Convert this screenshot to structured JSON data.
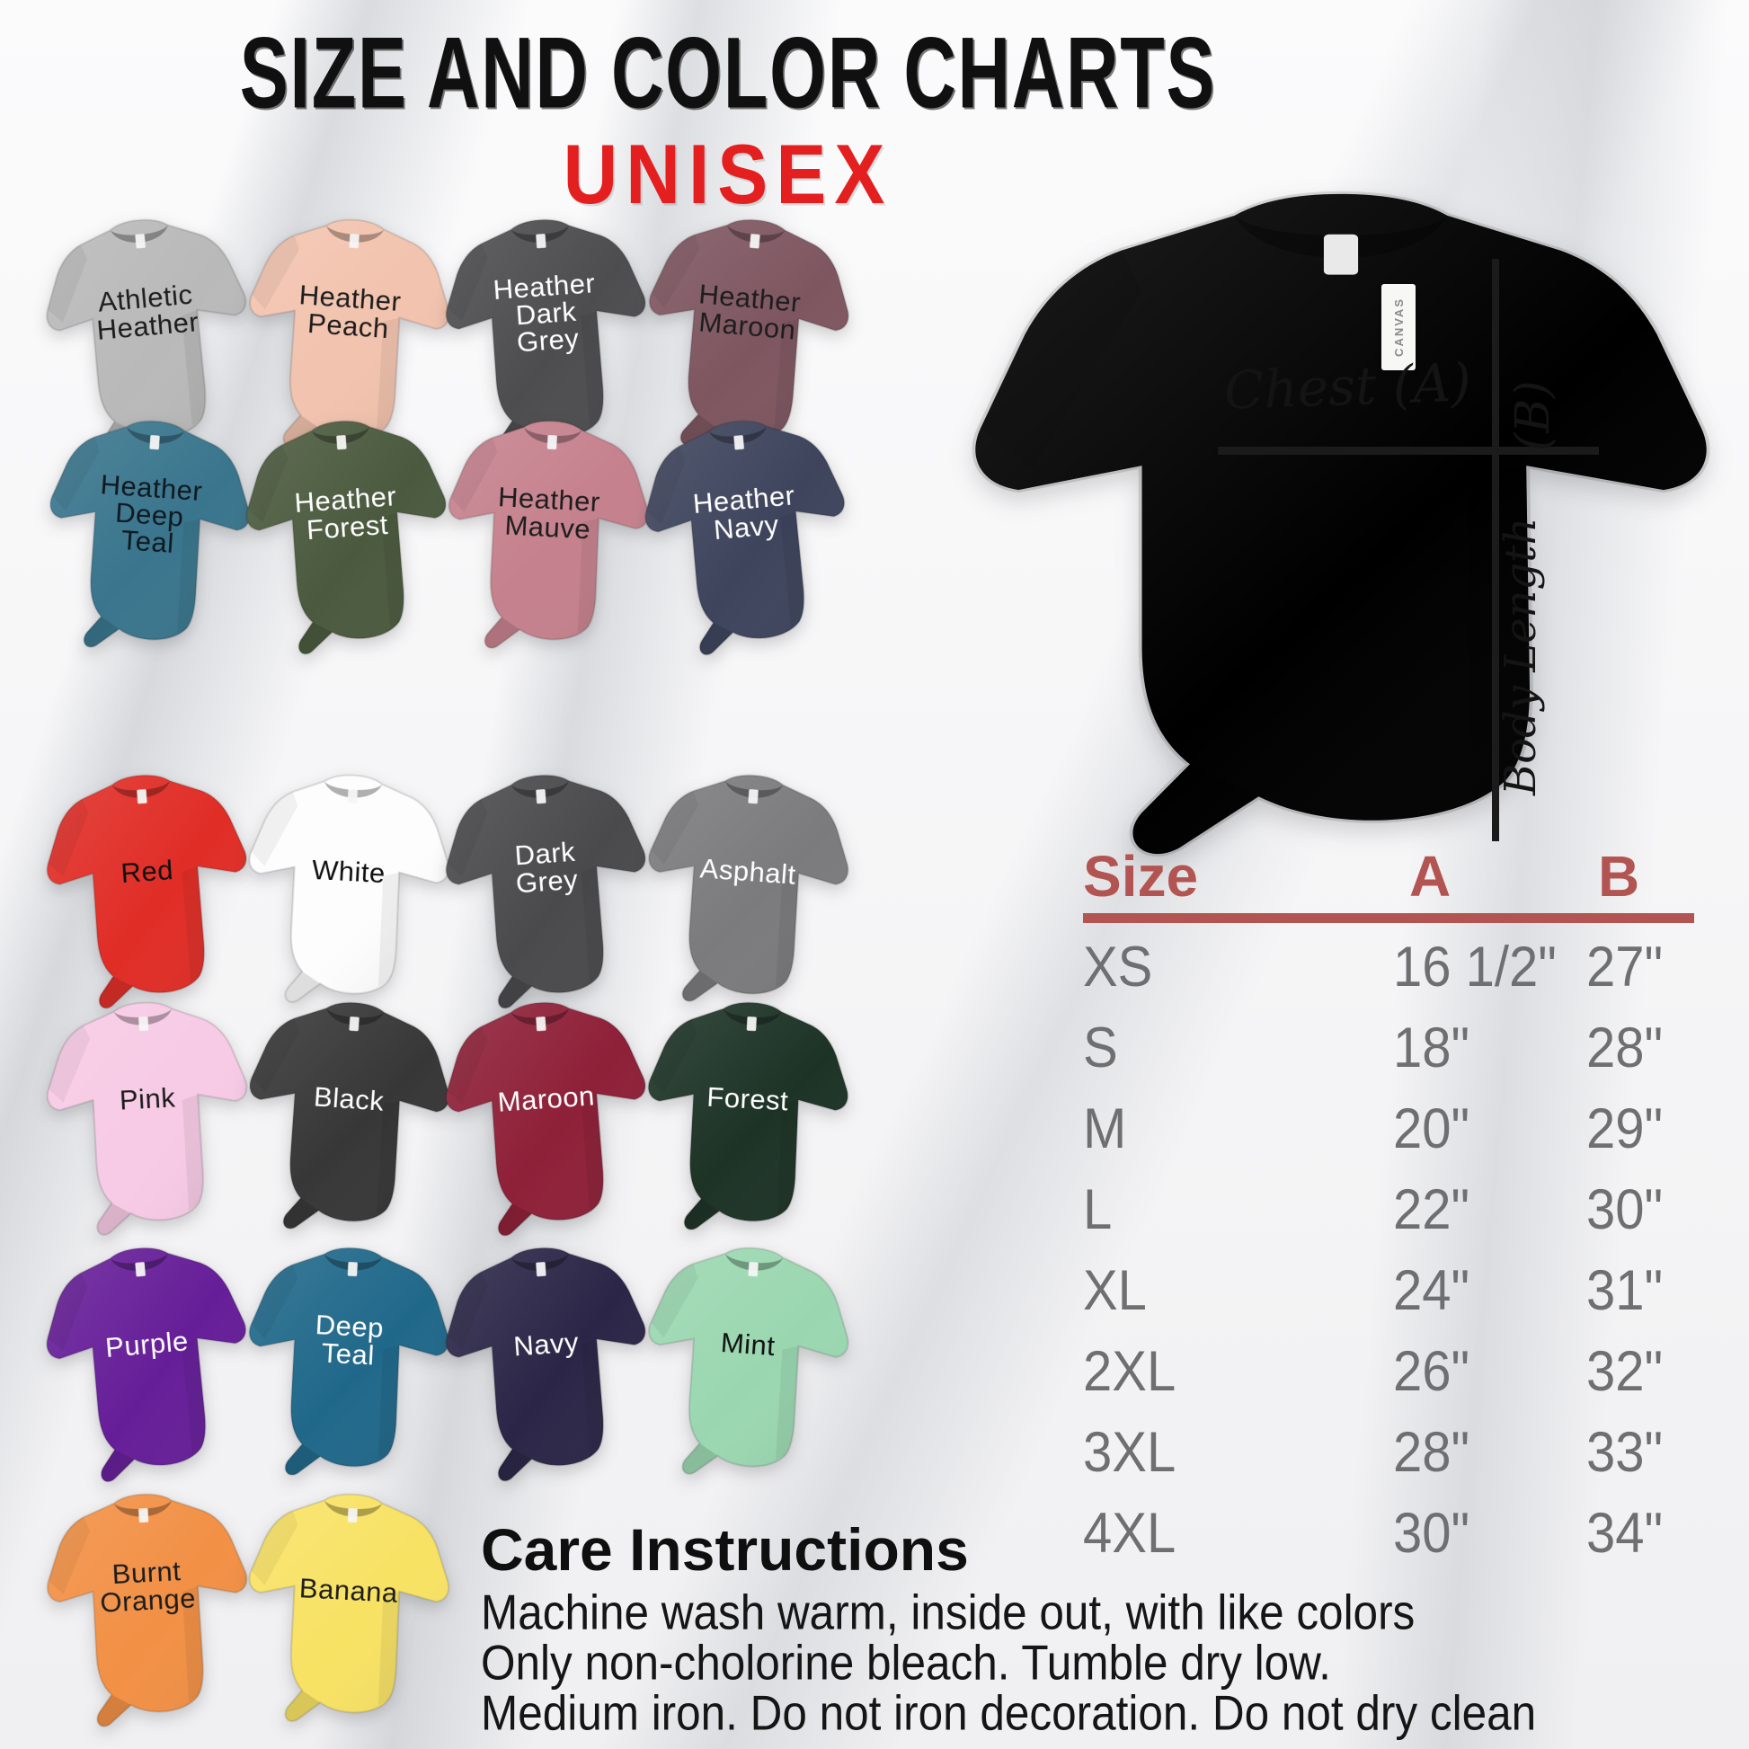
{
  "title": "SIZE AND COLOR CHARTS",
  "subtitle": "UNISEX",
  "accent": {
    "subtitle_red": "#e41f20",
    "table_header": "#b25552",
    "table_rule": "#b25552",
    "table_text": "#6f6f71",
    "measure_line": "#1b1b1b"
  },
  "shirts": [
    {
      "label": "Athletic Heather",
      "color": "#b9b9b9",
      "text": "#1d1d1d"
    },
    {
      "label": "Heather Peach",
      "color": "#f2c3ae",
      "text": "#1d1d1d"
    },
    {
      "label": "Heather Dark Grey",
      "color": "#4d4d4f",
      "text": "#ffffff"
    },
    {
      "label": "Heather Maroon",
      "color": "#7e5660",
      "text": "#1d1d1d"
    },
    {
      "label": "Heather Deep Teal",
      "color": "#39758d",
      "text": "#10191f"
    },
    {
      "label": "Heather Forest",
      "color": "#4b5a3e",
      "text": "#ffffff"
    },
    {
      "label": "Heather Mauve",
      "color": "#c5818d",
      "text": "#1d1d1d"
    },
    {
      "label": "Heather Navy",
      "color": "#3d445c",
      "text": "#ffffff"
    },
    {
      "label": "Red",
      "color": "#e02d26",
      "text": "#111111"
    },
    {
      "label": "White",
      "color": "#fdfdfd",
      "text": "#111111"
    },
    {
      "label": "Dark Grey",
      "color": "#4a4a4c",
      "text": "#ffffff"
    },
    {
      "label": "Asphalt",
      "color": "#7b7b7d",
      "text": "#ffffff"
    },
    {
      "label": "Pink",
      "color": "#f7cae5",
      "text": "#1d1d1d"
    },
    {
      "label": "Black",
      "color": "#373737",
      "text": "#ffffff"
    },
    {
      "label": "Maroon",
      "color": "#8e2038",
      "text": "#ffffff"
    },
    {
      "label": "Forest",
      "color": "#1d3326",
      "text": "#ffffff"
    },
    {
      "label": "Purple",
      "color": "#661e98",
      "text": "#ffffff"
    },
    {
      "label": "Deep Teal",
      "color": "#20688a",
      "text": "#ffffff"
    },
    {
      "label": "Navy",
      "color": "#2b2647",
      "text": "#ffffff"
    },
    {
      "label": "Mint",
      "color": "#9ad7b0",
      "text": "#111111"
    },
    {
      "label": "Burnt Orange",
      "color": "#f29045",
      "text": "#1d1d1d"
    },
    {
      "label": "Banana",
      "color": "#f8e264",
      "text": "#1d1d1d"
    }
  ],
  "measure": {
    "shirt_color": "#bc8890",
    "chest_label": "Chest (A)",
    "b_label": "(B)",
    "length_label": "Body Length",
    "tag_text": "CANVAS"
  },
  "size_chart": {
    "type": "table",
    "headers": [
      "Size",
      "A",
      "B"
    ],
    "rows": [
      [
        "XS",
        "16 1/2\"",
        "27\""
      ],
      [
        "S",
        "18\"",
        "28\""
      ],
      [
        "M",
        "20\"",
        "29\""
      ],
      [
        "L",
        "22\"",
        "30\""
      ],
      [
        "XL",
        "24\"",
        "31\""
      ],
      [
        "2XL",
        "26\"",
        "32\""
      ],
      [
        "3XL",
        "28\"",
        "33\""
      ],
      [
        "4XL",
        "30\"",
        "34\""
      ]
    ]
  },
  "care": {
    "heading": "Care Instructions",
    "lines": [
      "Machine wash warm, inside out, with like colors",
      "Only non-cholorine bleach. Tumble dry low.",
      "Medium iron. Do not iron decoration. Do not dry clean"
    ]
  }
}
